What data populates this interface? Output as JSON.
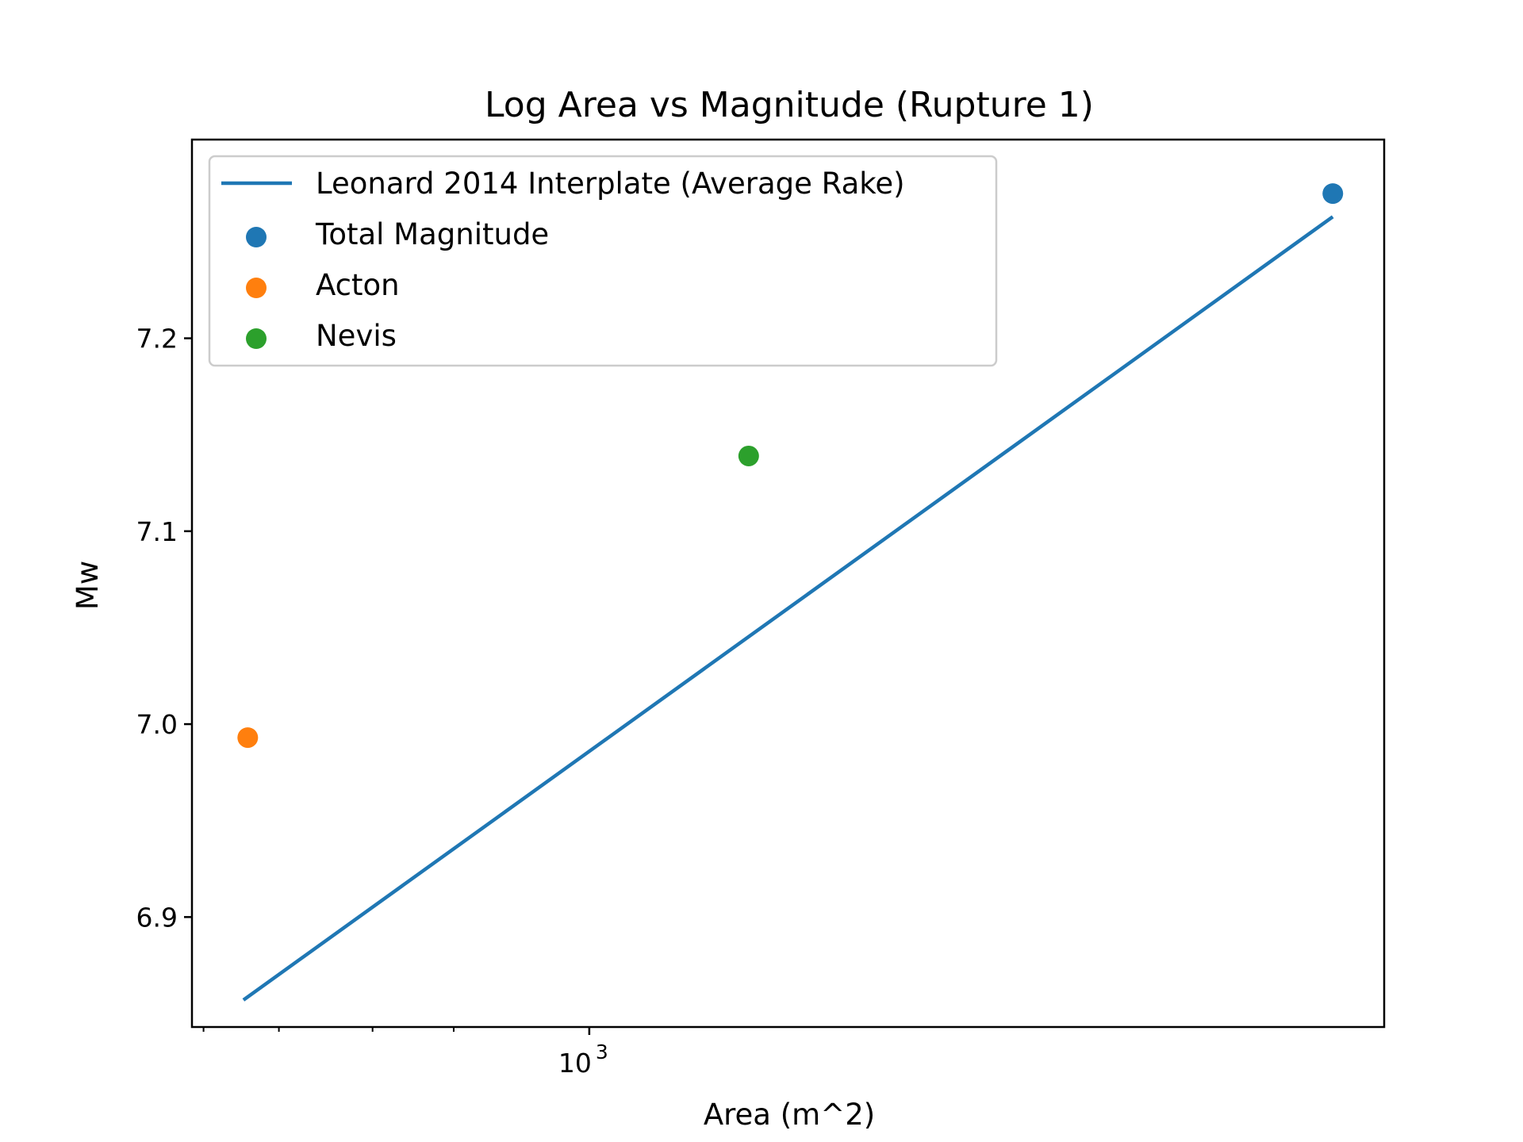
{
  "chart_data": {
    "type": "scatter",
    "title": "Log Area vs Magnitude (Rupture 1)",
    "xlabel": "Area (m^2)",
    "ylabel": "Mw",
    "xscale": "log",
    "xlim": [
      520,
      3700
    ],
    "ylim": [
      6.843,
      7.303
    ],
    "xticks": [
      {
        "value": 1000,
        "base": "10",
        "exp": "3"
      }
    ],
    "x_minor_ticks": [
      530,
      600,
      700,
      800
    ],
    "yticks": [
      6.9,
      7.0,
      7.1,
      7.2
    ],
    "ytick_labels": [
      "6.9",
      "7.0",
      "7.1",
      "7.2"
    ],
    "grid": false,
    "legend_placement": "top-left",
    "series": [
      {
        "name": "Leonard 2014 Interplate (Average Rake)",
        "kind": "line",
        "color": "#1f77b4",
        "x": [
          566,
          3400
        ],
        "y": [
          6.857,
          7.263
        ]
      },
      {
        "name": "Total Magnitude",
        "kind": "scatter",
        "color": "#1f77b4",
        "x": [
          3400
        ],
        "y": [
          7.275
        ]
      },
      {
        "name": "Acton",
        "kind": "scatter",
        "color": "#ff7f0e",
        "x": [
          570
        ],
        "y": [
          6.993
        ]
      },
      {
        "name": "Nevis",
        "kind": "scatter",
        "color": "#2ca02c",
        "x": [
          1300
        ],
        "y": [
          7.139
        ]
      }
    ]
  }
}
